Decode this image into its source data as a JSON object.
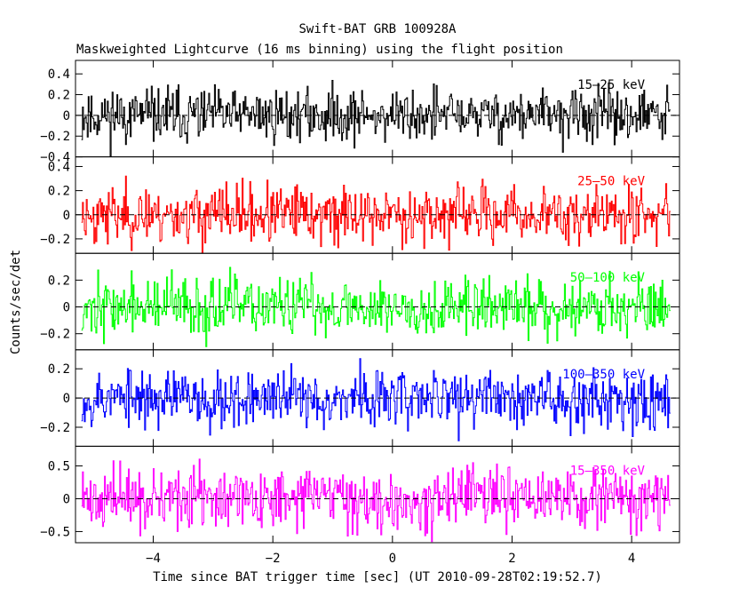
{
  "chart_data": {
    "type": "line",
    "title": "Swift-BAT GRB 100928A",
    "subtitle": "Maskweighted Lightcurve (16 ms binning) using the flight position",
    "xlabel": "Time since BAT trigger time [sec] (UT 2010-09-28T02:19:52.7)",
    "ylabel": "Counts/sec/det",
    "xlim": [
      -5.3,
      4.8
    ],
    "x_ticks": [
      -4,
      -2,
      0,
      2,
      4
    ],
    "x_tick_labels": [
      "−4",
      "−2",
      "0",
      "2",
      "4"
    ],
    "data_x_range": [
      -5.2,
      4.65
    ],
    "bin_size_sec": 0.016,
    "trigger_time_marker_x": 0,
    "panels": [
      {
        "name": "15-25 keV",
        "label": "15–25 keV",
        "color": "#000000",
        "ylim": [
          -0.4,
          0.53
        ],
        "y_ticks": [
          -0.4,
          -0.2,
          0,
          0.2,
          0.4
        ],
        "y_tick_labels": [
          "−0.4",
          "−0.2",
          "0",
          "0.2",
          "0.4"
        ],
        "noise_amplitude": 0.13,
        "seed": 11
      },
      {
        "name": "25-50 keV",
        "label": "25–50 keV",
        "color": "#ff0000",
        "ylim": [
          -0.32,
          0.48
        ],
        "y_ticks": [
          -0.2,
          0,
          0.2,
          0.4
        ],
        "y_tick_labels": [
          "−0.2",
          "0",
          "0.2",
          "0.4"
        ],
        "noise_amplitude": 0.12,
        "seed": 23
      },
      {
        "name": "50-100 keV",
        "label": "50–100 keV",
        "color": "#00ff00",
        "ylim": [
          -0.32,
          0.4
        ],
        "y_ticks": [
          -0.2,
          0,
          0.2
        ],
        "y_tick_labels": [
          "−0.2",
          "0",
          "0.2"
        ],
        "noise_amplitude": 0.11,
        "seed": 37
      },
      {
        "name": "100-350 keV",
        "label": "100–350 keV",
        "color": "#0000ff",
        "ylim": [
          -0.33,
          0.33
        ],
        "y_ticks": [
          -0.2,
          0,
          0.2
        ],
        "y_tick_labels": [
          "−0.2",
          "0",
          "0.2"
        ],
        "noise_amplitude": 0.1,
        "seed": 53
      },
      {
        "name": "15-350 keV",
        "label": "15–350 keV",
        "color": "#ff00ff",
        "ylim": [
          -0.67,
          0.8
        ],
        "y_ticks": [
          -0.5,
          0,
          0.5
        ],
        "y_tick_labels": [
          "−0.5",
          "0",
          "0.5"
        ],
        "noise_amplitude": 0.23,
        "seed": 71
      }
    ]
  }
}
